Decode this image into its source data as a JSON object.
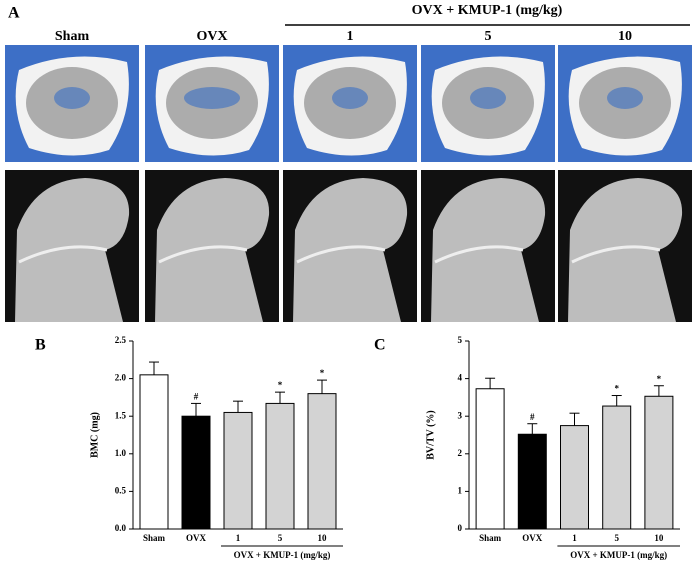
{
  "panel_a": {
    "label": "A",
    "columns": [
      "Sham",
      "OVX",
      "1",
      "5",
      "10"
    ],
    "group_label": "OVX + KMUP-1 (mg/kg)"
  },
  "chart_data": [
    {
      "type": "bar",
      "panel_label": "B",
      "ylabel": "BMC (mg)",
      "categories": [
        "Sham",
        "OVX",
        "1",
        "5",
        "10"
      ],
      "values": [
        2.05,
        1.5,
        1.55,
        1.67,
        1.8
      ],
      "errors": [
        0.17,
        0.17,
        0.15,
        0.15,
        0.18
      ],
      "colors": [
        "#ffffff",
        "#000000",
        "#d3d3d3",
        "#d3d3d3",
        "#d3d3d3"
      ],
      "annotations": [
        {
          "category": "OVX",
          "text": "#"
        },
        {
          "category": "5",
          "text": "*"
        },
        {
          "category": "10",
          "text": "*"
        }
      ],
      "group": {
        "label": "OVX + KMUP-1 (mg/kg)",
        "categories": [
          "1",
          "5",
          "10"
        ]
      },
      "ylim": [
        0,
        2.5
      ],
      "yticks": [
        {
          "value": 0,
          "label": "0.0"
        },
        {
          "value": 0.5,
          "label": "0.5"
        },
        {
          "value": 1,
          "label": "1.0"
        },
        {
          "value": 1.5,
          "label": "1.5"
        },
        {
          "value": 2,
          "label": "2.0"
        },
        {
          "value": 2.5,
          "label": "2.5"
        }
      ]
    },
    {
      "type": "bar",
      "panel_label": "C",
      "ylabel": "BV/TV (%)",
      "categories": [
        "Sham",
        "OVX",
        "1",
        "5",
        "10"
      ],
      "values": [
        3.73,
        2.52,
        2.75,
        3.27,
        3.53
      ],
      "errors": [
        0.28,
        0.28,
        0.33,
        0.28,
        0.28
      ],
      "colors": [
        "#ffffff",
        "#000000",
        "#d3d3d3",
        "#d3d3d3",
        "#d3d3d3"
      ],
      "annotations": [
        {
          "category": "OVX",
          "text": "#"
        },
        {
          "category": "5",
          "text": "*"
        },
        {
          "category": "10",
          "text": "*"
        }
      ],
      "group": {
        "label": "OVX + KMUP-1 (mg/kg)",
        "categories": [
          "1",
          "5",
          "10"
        ]
      },
      "ylim": [
        0,
        5
      ],
      "yticks": [
        0,
        1,
        2,
        3,
        4,
        5
      ]
    }
  ]
}
